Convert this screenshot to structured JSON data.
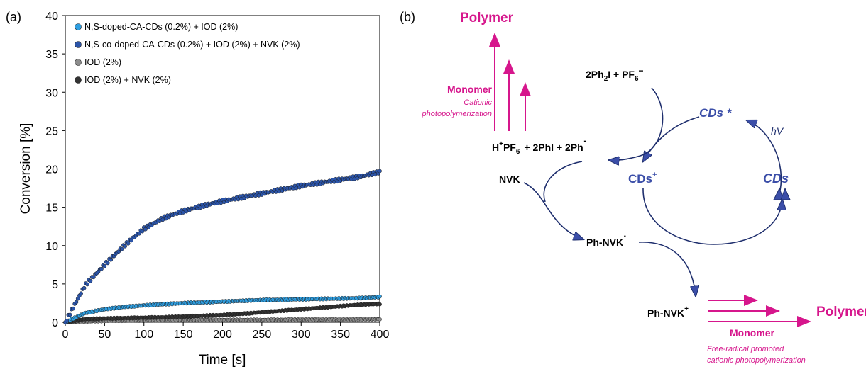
{
  "panel_a": {
    "label": "(a)",
    "chart_data": {
      "type": "scatter",
      "xlabel": "Time [s]",
      "ylabel": "Conversion [%]",
      "xlim": [
        0,
        400
      ],
      "ylim": [
        0,
        40
      ],
      "xticks": [
        0,
        50,
        100,
        150,
        200,
        250,
        300,
        350,
        400
      ],
      "yticks": [
        0,
        5,
        10,
        15,
        20,
        25,
        30,
        35,
        40
      ],
      "grid": false,
      "legend_position": "top-left",
      "series": [
        {
          "name": "N,S-doped-CA-CDs (0.2%) + IOD (2%)",
          "color": "#2f9ee0",
          "x": [
            0,
            25,
            50,
            75,
            100,
            125,
            150,
            175,
            200,
            225,
            250,
            275,
            300,
            325,
            350,
            375,
            400
          ],
          "y": [
            0,
            1.2,
            1.7,
            2.0,
            2.2,
            2.35,
            2.5,
            2.6,
            2.7,
            2.8,
            2.9,
            2.95,
            3.0,
            3.05,
            3.1,
            3.15,
            3.3
          ]
        },
        {
          "name": "N,S-co-doped-CA-CDs (0.2%) + IOD (2%) + NVK (2%)",
          "color": "#2b54a8",
          "x": [
            0,
            25,
            50,
            75,
            100,
            125,
            150,
            175,
            200,
            225,
            250,
            275,
            300,
            325,
            350,
            375,
            400
          ],
          "y": [
            0,
            4.8,
            7.5,
            10.0,
            12.2,
            13.6,
            14.5,
            15.2,
            15.8,
            16.3,
            16.8,
            17.3,
            17.8,
            18.2,
            18.6,
            19.0,
            19.6
          ]
        },
        {
          "name": "IOD (2%)",
          "color": "#8c8c8c",
          "x": [
            0,
            50,
            100,
            150,
            200,
            250,
            300,
            350,
            400
          ],
          "y": [
            0,
            0.2,
            0.25,
            0.3,
            0.3,
            0.3,
            0.35,
            0.35,
            0.4
          ]
        },
        {
          "name": "IOD (2%) + NVK (2%)",
          "color": "#333333",
          "x": [
            0,
            25,
            50,
            75,
            100,
            125,
            150,
            175,
            200,
            225,
            250,
            275,
            300,
            325,
            350,
            375,
            400
          ],
          "y": [
            0,
            0.4,
            0.5,
            0.55,
            0.6,
            0.65,
            0.75,
            0.85,
            0.95,
            1.1,
            1.3,
            1.5,
            1.7,
            1.9,
            2.1,
            2.3,
            2.4
          ]
        }
      ]
    }
  },
  "panel_b": {
    "label": "(b)",
    "polymer_top": "Polymer",
    "monomer_top": "Monomer",
    "cationic_line1": "Cationic",
    "cationic_line2": "photopolymerization",
    "reagent_main": "2Ph",
    "reagent_sub": "2",
    "reagent_mid": "I  + PF",
    "reagent_sub2": "6",
    "reagent_sup": "−",
    "cds_excited": "CDs *",
    "hv": "hV",
    "acid_h": "H",
    "acid_plus": "+",
    "acid_pf": "PF",
    "acid_sub": "6",
    "products": "+   2PhI  +  2Ph",
    "radical_dot": "·",
    "nvk": "NVK",
    "cds_plus": "CDs",
    "cds_plus_sup": "+",
    "cds": "CDs",
    "ph_nvk_radical": "Ph-NVK",
    "ph_nvk_cation": "Ph-NVK",
    "cation_sup": "+",
    "polymer_bottom": "Polymer",
    "monomer_bottom": "Monomer",
    "free_radical_line1": "Free-radical promoted",
    "free_radical_line2": "cationic photopolymerization",
    "colors": {
      "magenta": "#d6168c",
      "navy": "#1f2f6e",
      "cds_blue": "#3b4ea8"
    }
  }
}
